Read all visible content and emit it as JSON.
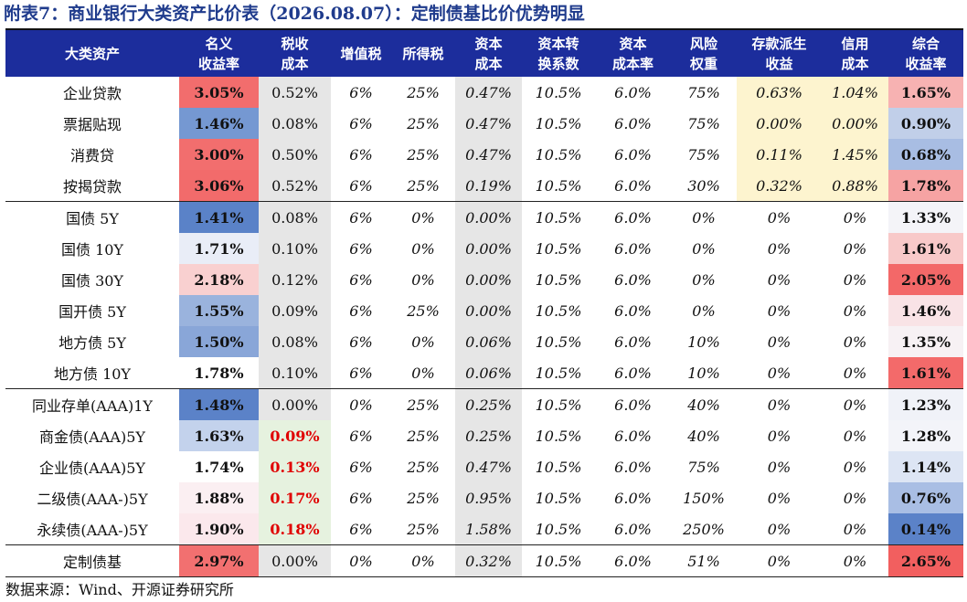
{
  "title": "附表7：商业银行大类资产比价表（2026.08.07）：定制债基比价优势明显",
  "footer": "数据来源：Wind、开源证券研究所",
  "columns": [
    {
      "label": "大类资产",
      "width": 190
    },
    {
      "label": "名义收益率",
      "width": 87
    },
    {
      "label": "税收成本",
      "width": 79
    },
    {
      "label": "增值税",
      "width": 66
    },
    {
      "label": "所得税",
      "width": 70
    },
    {
      "label": "资本成本",
      "width": 73
    },
    {
      "label": "资本转换系数",
      "width": 80
    },
    {
      "label": "资本成本率",
      "width": 83
    },
    {
      "label": "风险权重",
      "width": 72
    },
    {
      "label": "存款派生收益",
      "width": 93
    },
    {
      "label": "信用成本",
      "width": 73
    },
    {
      "label": "综合收益率",
      "width": 82
    }
  ],
  "header_lines": [
    [
      "大类资产"
    ],
    [
      "名义",
      "收益率"
    ],
    [
      "税收",
      "成本"
    ],
    [
      "增值税"
    ],
    [
      "所得税"
    ],
    [
      "资本",
      "成本"
    ],
    [
      "资本转",
      "换系数"
    ],
    [
      "资本",
      "成本率"
    ],
    [
      "风险",
      "权重"
    ],
    [
      "存款派生",
      "收益"
    ],
    [
      "信用",
      "成本"
    ],
    [
      "综合",
      "收益率"
    ]
  ],
  "groups": [
    {
      "rows": [
        {
          "name": "企业贷款",
          "nominal": "3.05%",
          "tax": "0.52%",
          "vat": "6%",
          "income_tax": "25%",
          "capital_cost": "0.47%",
          "conv": "10.5%",
          "cap_rate": "6.0%",
          "risk": "75%",
          "deposit": "0.63%",
          "credit": "1.04%",
          "total": "1.65%",
          "nominal_bg": "#f26d6d",
          "total_bg": "#f7b2b2",
          "tax_red": false
        },
        {
          "name": "票据贴现",
          "nominal": "1.46%",
          "tax": "0.08%",
          "vat": "6%",
          "income_tax": "25%",
          "capital_cost": "0.47%",
          "conv": "10.5%",
          "cap_rate": "6.0%",
          "risk": "75%",
          "deposit": "0.00%",
          "credit": "0.00%",
          "total": "0.90%",
          "nominal_bg": "#7598d2",
          "total_bg": "#c1cfe9",
          "tax_red": false
        },
        {
          "name": "消费贷",
          "nominal": "3.00%",
          "tax": "0.50%",
          "vat": "6%",
          "income_tax": "25%",
          "capital_cost": "0.47%",
          "conv": "10.5%",
          "cap_rate": "6.0%",
          "risk": "75%",
          "deposit": "0.11%",
          "credit": "1.45%",
          "total": "0.68%",
          "nominal_bg": "#f26e6e",
          "total_bg": "#a8bde3",
          "tax_red": false
        },
        {
          "name": "按揭贷款",
          "nominal": "3.06%",
          "tax": "0.52%",
          "vat": "6%",
          "income_tax": "25%",
          "capital_cost": "0.19%",
          "conv": "10.5%",
          "cap_rate": "6.0%",
          "risk": "30%",
          "deposit": "0.32%",
          "credit": "0.88%",
          "total": "1.78%",
          "nominal_bg": "#f26b6b",
          "total_bg": "#f6a3a3",
          "tax_red": false
        }
      ]
    },
    {
      "rows": [
        {
          "name": "国债 5Y",
          "nominal": "1.41%",
          "tax": "0.08%",
          "vat": "6%",
          "income_tax": "0%",
          "capital_cost": "0.00%",
          "conv": "10.5%",
          "cap_rate": "6.0%",
          "risk": "0%",
          "deposit": "0%",
          "credit": "0%",
          "total": "1.33%",
          "nominal_bg": "#5a82c8",
          "total_bg": "#f4f4f8",
          "tax_red": false
        },
        {
          "name": "国债 10Y",
          "nominal": "1.71%",
          "tax": "0.10%",
          "vat": "6%",
          "income_tax": "0%",
          "capital_cost": "0.00%",
          "conv": "10.5%",
          "cap_rate": "6.0%",
          "risk": "0%",
          "deposit": "0%",
          "credit": "0%",
          "total": "1.61%",
          "nominal_bg": "#e9edf7",
          "total_bg": "#f8c9c9",
          "tax_red": false
        },
        {
          "name": "国债 30Y",
          "nominal": "2.18%",
          "tax": "0.12%",
          "vat": "6%",
          "income_tax": "0%",
          "capital_cost": "0.00%",
          "conv": "10.5%",
          "cap_rate": "6.0%",
          "risk": "0%",
          "deposit": "0%",
          "credit": "0%",
          "total": "2.05%",
          "nominal_bg": "#f9d0d0",
          "total_bg": "#f36868",
          "tax_red": false
        },
        {
          "name": "国开债 5Y",
          "nominal": "1.55%",
          "tax": "0.09%",
          "vat": "6%",
          "income_tax": "25%",
          "capital_cost": "0.00%",
          "conv": "10.5%",
          "cap_rate": "6.0%",
          "risk": "0%",
          "deposit": "0%",
          "credit": "0%",
          "total": "1.46%",
          "nominal_bg": "#9ab3dd",
          "total_bg": "#f9e3e6",
          "tax_red": false
        },
        {
          "name": "地方债 5Y",
          "nominal": "1.50%",
          "tax": "0.08%",
          "vat": "6%",
          "income_tax": "0%",
          "capital_cost": "0.06%",
          "conv": "10.5%",
          "cap_rate": "6.0%",
          "risk": "10%",
          "deposit": "0%",
          "credit": "0%",
          "total": "1.35%",
          "nominal_bg": "#89a6d8",
          "total_bg": "#f7f1f4",
          "tax_red": false
        },
        {
          "name": "地方债 10Y",
          "nominal": "1.78%",
          "tax": "0.10%",
          "vat": "6%",
          "income_tax": "0%",
          "capital_cost": "0.06%",
          "conv": "10.5%",
          "cap_rate": "6.0%",
          "risk": "10%",
          "deposit": "0%",
          "credit": "0%",
          "total": "1.61%",
          "nominal_bg": "#ffffff",
          "total_bg": "#f36a6a",
          "tax_red": false
        }
      ]
    },
    {
      "rows": [
        {
          "name": "同业存单(AAA)1Y",
          "nominal": "1.48%",
          "tax": "0.00%",
          "vat": "0%",
          "income_tax": "25%",
          "capital_cost": "0.25%",
          "conv": "10.5%",
          "cap_rate": "6.0%",
          "risk": "40%",
          "deposit": "0%",
          "credit": "0%",
          "total": "1.23%",
          "nominal_bg": "#5b82c8",
          "total_bg": "#f0f2f8",
          "tax_red": false
        },
        {
          "name": "商金债(AAA)5Y",
          "nominal": "1.63%",
          "tax": "0.09%",
          "vat": "6%",
          "income_tax": "25%",
          "capital_cost": "0.25%",
          "conv": "10.5%",
          "cap_rate": "6.0%",
          "risk": "40%",
          "deposit": "0%",
          "credit": "0%",
          "total": "1.28%",
          "nominal_bg": "#c3d2ec",
          "total_bg": "#f3f4f9",
          "tax_red": true
        },
        {
          "name": "企业债(AAA)5Y",
          "nominal": "1.74%",
          "tax": "0.13%",
          "vat": "6%",
          "income_tax": "25%",
          "capital_cost": "0.47%",
          "conv": "10.5%",
          "cap_rate": "6.0%",
          "risk": "75%",
          "deposit": "0%",
          "credit": "0%",
          "total": "1.14%",
          "nominal_bg": "#ffffff",
          "total_bg": "#dde5f4",
          "tax_red": true
        },
        {
          "name": "二级债(AAA-)5Y",
          "nominal": "1.88%",
          "tax": "0.17%",
          "vat": "6%",
          "income_tax": "25%",
          "capital_cost": "0.95%",
          "conv": "10.5%",
          "cap_rate": "6.0%",
          "risk": "150%",
          "deposit": "0%",
          "credit": "0%",
          "total": "0.76%",
          "nominal_bg": "#fbeff2",
          "total_bg": "#a9bee4",
          "tax_red": true
        },
        {
          "name": "永续债(AAA-)5Y",
          "nominal": "1.90%",
          "tax": "0.18%",
          "vat": "6%",
          "income_tax": "25%",
          "capital_cost": "1.58%",
          "conv": "10.5%",
          "cap_rate": "6.0%",
          "risk": "250%",
          "deposit": "0%",
          "credit": "0%",
          "total": "0.14%",
          "nominal_bg": "#fbe8ec",
          "total_bg": "#5b82c8",
          "tax_red": true
        }
      ]
    },
    {
      "rows": [
        {
          "name": "定制债基",
          "nominal": "2.97%",
          "tax": "0.00%",
          "vat": "0%",
          "income_tax": "0%",
          "capital_cost": "0.32%",
          "conv": "10.5%",
          "cap_rate": "6.0%",
          "risk": "51%",
          "deposit": "0%",
          "credit": "0%",
          "total": "2.65%",
          "nominal_bg": "#f27070",
          "total_bg": "#f25f5f",
          "tax_red": false
        }
      ]
    }
  ],
  "colors": {
    "header_bg": "#1c2d9c",
    "tax_col_bg": "#e6e6e6",
    "capital_col_bg": "#e6e6e6",
    "deposit_bg_loans": "#fdf4cf",
    "tax_green_bg": "#e6f2df"
  }
}
